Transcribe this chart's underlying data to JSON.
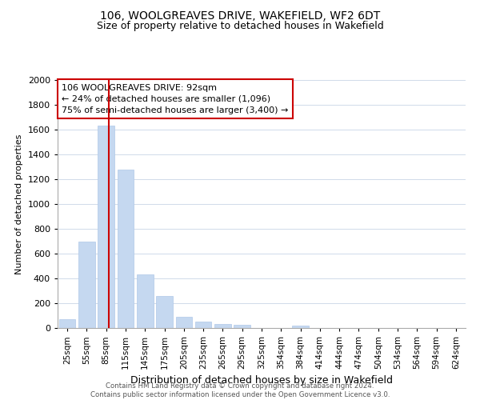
{
  "title": "106, WOOLGREAVES DRIVE, WAKEFIELD, WF2 6DT",
  "subtitle": "Size of property relative to detached houses in Wakefield",
  "xlabel": "Distribution of detached houses by size in Wakefield",
  "ylabel": "Number of detached properties",
  "bar_labels": [
    "25sqm",
    "55sqm",
    "85sqm",
    "115sqm",
    "145sqm",
    "175sqm",
    "205sqm",
    "235sqm",
    "265sqm",
    "295sqm",
    "325sqm",
    "354sqm",
    "384sqm",
    "414sqm",
    "444sqm",
    "474sqm",
    "504sqm",
    "534sqm",
    "564sqm",
    "594sqm",
    "624sqm"
  ],
  "bar_values": [
    70,
    700,
    1630,
    1280,
    430,
    255,
    90,
    52,
    35,
    25,
    0,
    0,
    18,
    0,
    0,
    0,
    0,
    0,
    0,
    0,
    0
  ],
  "bar_color": "#c5d8f0",
  "bar_edge_color": "#b0c8e8",
  "property_line_color": "#cc0000",
  "annotation_text": "106 WOOLGREAVES DRIVE: 92sqm\n← 24% of detached houses are smaller (1,096)\n75% of semi-detached houses are larger (3,400) →",
  "annotation_box_color": "#ffffff",
  "annotation_box_edge": "#cc0000",
  "ylim": [
    0,
    2000
  ],
  "yticks": [
    0,
    200,
    400,
    600,
    800,
    1000,
    1200,
    1400,
    1600,
    1800,
    2000
  ],
  "footer_line1": "Contains HM Land Registry data © Crown copyright and database right 2024.",
  "footer_line2": "Contains public sector information licensed under the Open Government Licence v3.0.",
  "background_color": "#ffffff",
  "grid_color": "#d0daea",
  "title_fontsize": 10,
  "subtitle_fontsize": 9,
  "ylabel_fontsize": 8,
  "xlabel_fontsize": 9,
  "tick_fontsize": 8,
  "xtick_fontsize": 7.5
}
